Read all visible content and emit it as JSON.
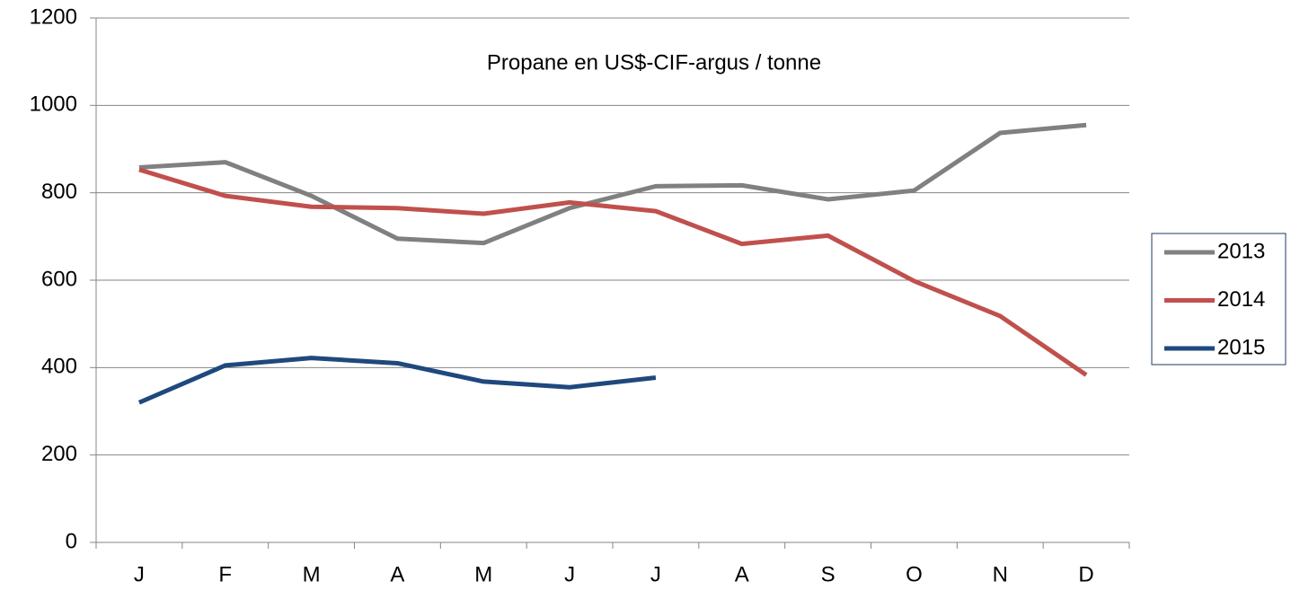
{
  "chart_data": {
    "type": "line",
    "title": "Propane en US$-CIF-argus / tonne",
    "categories": [
      "J",
      "F",
      "M",
      "A",
      "M",
      "J",
      "J",
      "A",
      "S",
      "O",
      "N",
      "D"
    ],
    "series": [
      {
        "name": "2013",
        "color": "#808080",
        "values": [
          858,
          870,
          793,
          695,
          685,
          765,
          815,
          817,
          785,
          805,
          937,
          955
        ]
      },
      {
        "name": "2014",
        "color": "#c0504d",
        "values": [
          853,
          793,
          768,
          765,
          752,
          778,
          758,
          683,
          702,
          598,
          518,
          383
        ]
      },
      {
        "name": "2015",
        "color": "#1f497d",
        "values": [
          320,
          405,
          422,
          410,
          368,
          355,
          377,
          null,
          null,
          null,
          null,
          null
        ]
      }
    ],
    "ylim": [
      0,
      1200
    ],
    "yticks": [
      0,
      200,
      400,
      600,
      800,
      1000,
      1200
    ],
    "grid": true,
    "legend": "right"
  }
}
